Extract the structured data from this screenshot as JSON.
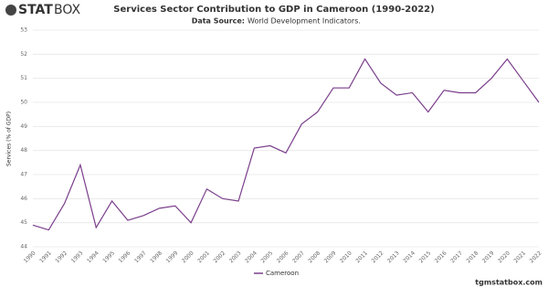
{
  "brand": {
    "part1": "STAT",
    "part2": "BOX"
  },
  "footer": "tgmstatbox.com",
  "chart_data": {
    "type": "line",
    "title": "Services Sector Contribution to GDP in Cameroon (1990-2022)",
    "subtitle_label": "Data Source:",
    "subtitle": "World Development Indicators.",
    "y_label": "Services (% of GDP)",
    "categories": [
      "1990",
      "1991",
      "1992",
      "1993",
      "1994",
      "1995",
      "1996",
      "1997",
      "1998",
      "1999",
      "2000",
      "2001",
      "2002",
      "2003",
      "2004",
      "2005",
      "2006",
      "2007",
      "2008",
      "2009",
      "2010",
      "2011",
      "2012",
      "2013",
      "2014",
      "2015",
      "2016",
      "2017",
      "2018",
      "2019",
      "2020",
      "2021",
      "2022"
    ],
    "series": [
      {
        "name": "Cameroon",
        "color": "#7b3f8c",
        "values": [
          44.9,
          44.7,
          45.8,
          47.4,
          44.8,
          45.9,
          45.1,
          45.3,
          45.6,
          45.7,
          45.0,
          46.4,
          46.0,
          45.9,
          48.1,
          48.2,
          47.9,
          49.1,
          49.6,
          50.6,
          50.6,
          51.8,
          50.8,
          50.3,
          50.4,
          49.6,
          50.5,
          50.4,
          50.4,
          51.0,
          51.8,
          50.9,
          50.0
        ]
      }
    ],
    "ylim": [
      44,
      53
    ],
    "yticks": [
      44,
      45,
      46,
      47,
      48,
      49,
      50,
      51,
      52,
      53
    ],
    "grid": true
  }
}
